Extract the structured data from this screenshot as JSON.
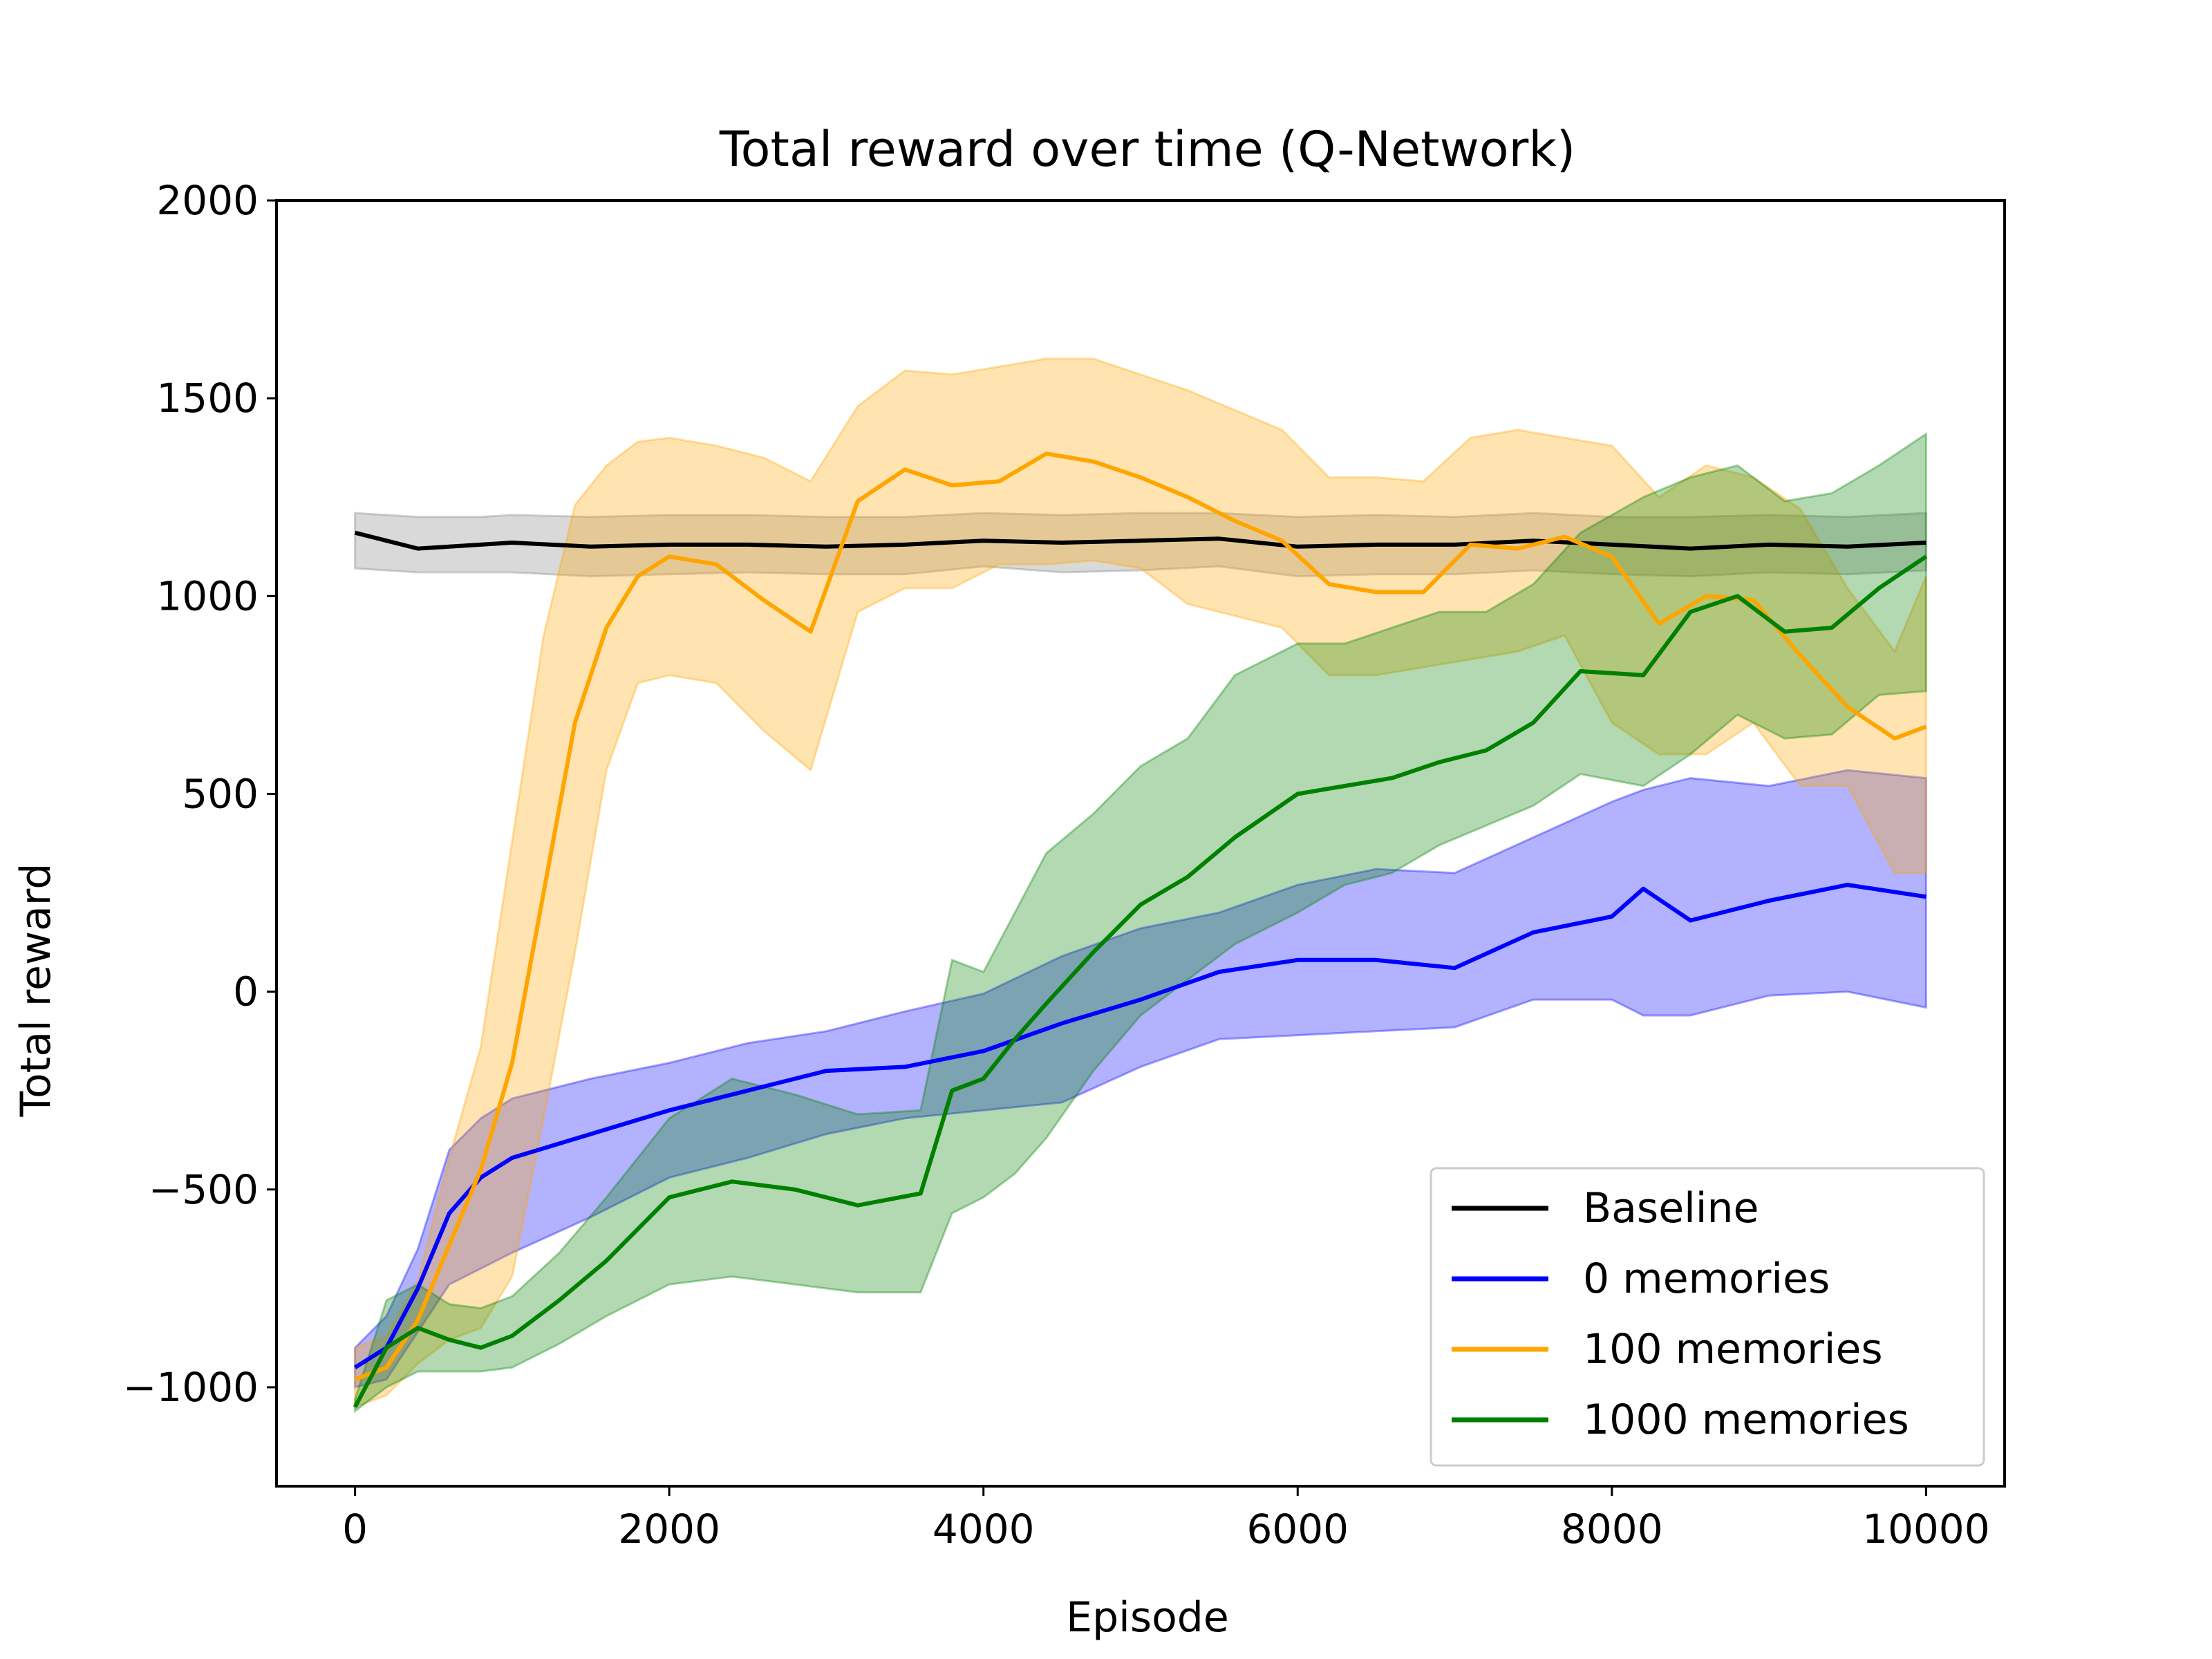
{
  "chart_data": {
    "type": "line",
    "title": "Total reward over time (Q-Network)",
    "xlabel": "Episode",
    "ylabel": "Total reward",
    "xlim": [
      -500,
      10500
    ],
    "ylim": [
      -1250,
      2000
    ],
    "xticks": [
      0,
      2000,
      4000,
      6000,
      8000,
      10000
    ],
    "xtick_labels": [
      "0",
      "2000",
      "4000",
      "6000",
      "8000",
      "10000"
    ],
    "yticks": [
      -1000,
      -500,
      0,
      500,
      1000,
      1500,
      2000
    ],
    "ytick_labels": [
      "−1000",
      "−500",
      "0",
      "500",
      "1000",
      "1500",
      "2000"
    ],
    "grid": false,
    "legend_position": "lower right",
    "series": [
      {
        "name": "Baseline",
        "color": "#000000",
        "band_color": "#808080",
        "x": [
          0,
          200,
          400,
          600,
          800,
          1000,
          1500,
          2000,
          2500,
          3000,
          3500,
          4000,
          4500,
          5000,
          5500,
          6000,
          6500,
          7000,
          7500,
          8000,
          8500,
          9000,
          9500,
          10000
        ],
        "values": [
          1160,
          1140,
          1120,
          1125,
          1130,
          1135,
          1125,
          1130,
          1130,
          1125,
          1130,
          1140,
          1135,
          1140,
          1145,
          1125,
          1130,
          1130,
          1140,
          1130,
          1120,
          1130,
          1125,
          1135
        ],
        "lower": [
          1070,
          1065,
          1060,
          1060,
          1060,
          1060,
          1050,
          1055,
          1060,
          1055,
          1055,
          1075,
          1060,
          1065,
          1075,
          1050,
          1055,
          1055,
          1065,
          1055,
          1050,
          1060,
          1055,
          1065
        ],
        "upper": [
          1210,
          1205,
          1200,
          1200,
          1200,
          1205,
          1200,
          1205,
          1205,
          1200,
          1200,
          1210,
          1205,
          1210,
          1210,
          1200,
          1205,
          1200,
          1210,
          1200,
          1200,
          1205,
          1200,
          1210
        ]
      },
      {
        "name": "0 memories",
        "color": "#0000ff",
        "band_color": "#0000ff",
        "x": [
          0,
          200,
          400,
          600,
          800,
          1000,
          1500,
          2000,
          2500,
          3000,
          3500,
          4000,
          4500,
          5000,
          5500,
          6000,
          6500,
          7000,
          7500,
          8000,
          8200,
          8500,
          9000,
          9500,
          10000
        ],
        "values": [
          -950,
          -900,
          -750,
          -560,
          -470,
          -420,
          -360,
          -300,
          -250,
          -200,
          -190,
          -150,
          -80,
          -20,
          50,
          80,
          80,
          60,
          150,
          190,
          260,
          180,
          230,
          270,
          240
        ],
        "lower": [
          -1000,
          -980,
          -860,
          -740,
          -700,
          -660,
          -570,
          -470,
          -420,
          -360,
          -320,
          -300,
          -280,
          -190,
          -120,
          -110,
          -100,
          -90,
          -20,
          -20,
          -60,
          -60,
          -10,
          0,
          -40
        ],
        "upper": [
          -900,
          -820,
          -650,
          -400,
          -320,
          -270,
          -220,
          -180,
          -130,
          -100,
          -50,
          -5,
          90,
          160,
          200,
          270,
          310,
          300,
          390,
          480,
          510,
          540,
          520,
          560,
          540
        ]
      },
      {
        "name": "100 memories",
        "color": "#ffa500",
        "band_color": "#ffa500",
        "x": [
          0,
          200,
          400,
          600,
          800,
          1000,
          1200,
          1400,
          1600,
          1800,
          2000,
          2300,
          2600,
          2900,
          3200,
          3500,
          3800,
          4100,
          4400,
          4700,
          5000,
          5300,
          5600,
          5900,
          6200,
          6500,
          6800,
          7100,
          7400,
          7700,
          8000,
          8300,
          8600,
          8900,
          9200,
          9500,
          9800,
          10000
        ],
        "values": [
          -980,
          -950,
          -830,
          -640,
          -450,
          -180,
          250,
          680,
          920,
          1050,
          1100,
          1080,
          990,
          910,
          1240,
          1320,
          1280,
          1290,
          1360,
          1340,
          1300,
          1250,
          1190,
          1140,
          1030,
          1010,
          1010,
          1130,
          1120,
          1150,
          1100,
          930,
          1000,
          990,
          850,
          720,
          640,
          670
        ],
        "lower": [
          -1050,
          -1020,
          -940,
          -880,
          -850,
          -720,
          -320,
          100,
          560,
          780,
          800,
          780,
          660,
          560,
          960,
          1020,
          1020,
          1080,
          1080,
          1090,
          1070,
          980,
          950,
          920,
          800,
          800,
          820,
          840,
          860,
          900,
          680,
          600,
          600,
          680,
          520,
          520,
          300,
          300
        ],
        "upper": [
          -900,
          -870,
          -730,
          -420,
          -140,
          380,
          900,
          1230,
          1330,
          1390,
          1400,
          1380,
          1350,
          1290,
          1480,
          1570,
          1560,
          1580,
          1600,
          1600,
          1560,
          1520,
          1470,
          1420,
          1300,
          1300,
          1290,
          1400,
          1420,
          1400,
          1380,
          1250,
          1330,
          1300,
          1220,
          1020,
          860,
          1050
        ]
      },
      {
        "name": "1000 memories",
        "color": "#008000",
        "band_color": "#008000",
        "x": [
          0,
          200,
          400,
          600,
          800,
          1000,
          1300,
          1600,
          2000,
          2400,
          2800,
          3200,
          3600,
          3800,
          4000,
          4200,
          4400,
          4700,
          5000,
          5300,
          5600,
          6000,
          6300,
          6600,
          6900,
          7200,
          7500,
          7800,
          8200,
          8500,
          8800,
          9100,
          9400,
          9700,
          10000
        ],
        "values": [
          -1050,
          -900,
          -850,
          -880,
          -900,
          -870,
          -780,
          -680,
          -520,
          -480,
          -500,
          -540,
          -510,
          -250,
          -220,
          -120,
          -30,
          100,
          220,
          290,
          390,
          500,
          520,
          540,
          580,
          610,
          680,
          810,
          800,
          960,
          1000,
          910,
          920,
          1020,
          1100
        ],
        "lower": [
          -1060,
          -1000,
          -960,
          -960,
          -960,
          -950,
          -890,
          -820,
          -740,
          -720,
          -740,
          -760,
          -760,
          -560,
          -520,
          -460,
          -370,
          -200,
          -60,
          30,
          120,
          200,
          270,
          300,
          370,
          420,
          470,
          550,
          520,
          600,
          700,
          640,
          650,
          750,
          760
        ],
        "upper": [
          -1030,
          -780,
          -740,
          -790,
          -800,
          -770,
          -660,
          -520,
          -320,
          -220,
          -260,
          -310,
          -300,
          80,
          50,
          200,
          350,
          450,
          570,
          640,
          800,
          880,
          880,
          920,
          960,
          960,
          1030,
          1160,
          1250,
          1300,
          1330,
          1240,
          1260,
          1330,
          1410
        ]
      }
    ]
  }
}
